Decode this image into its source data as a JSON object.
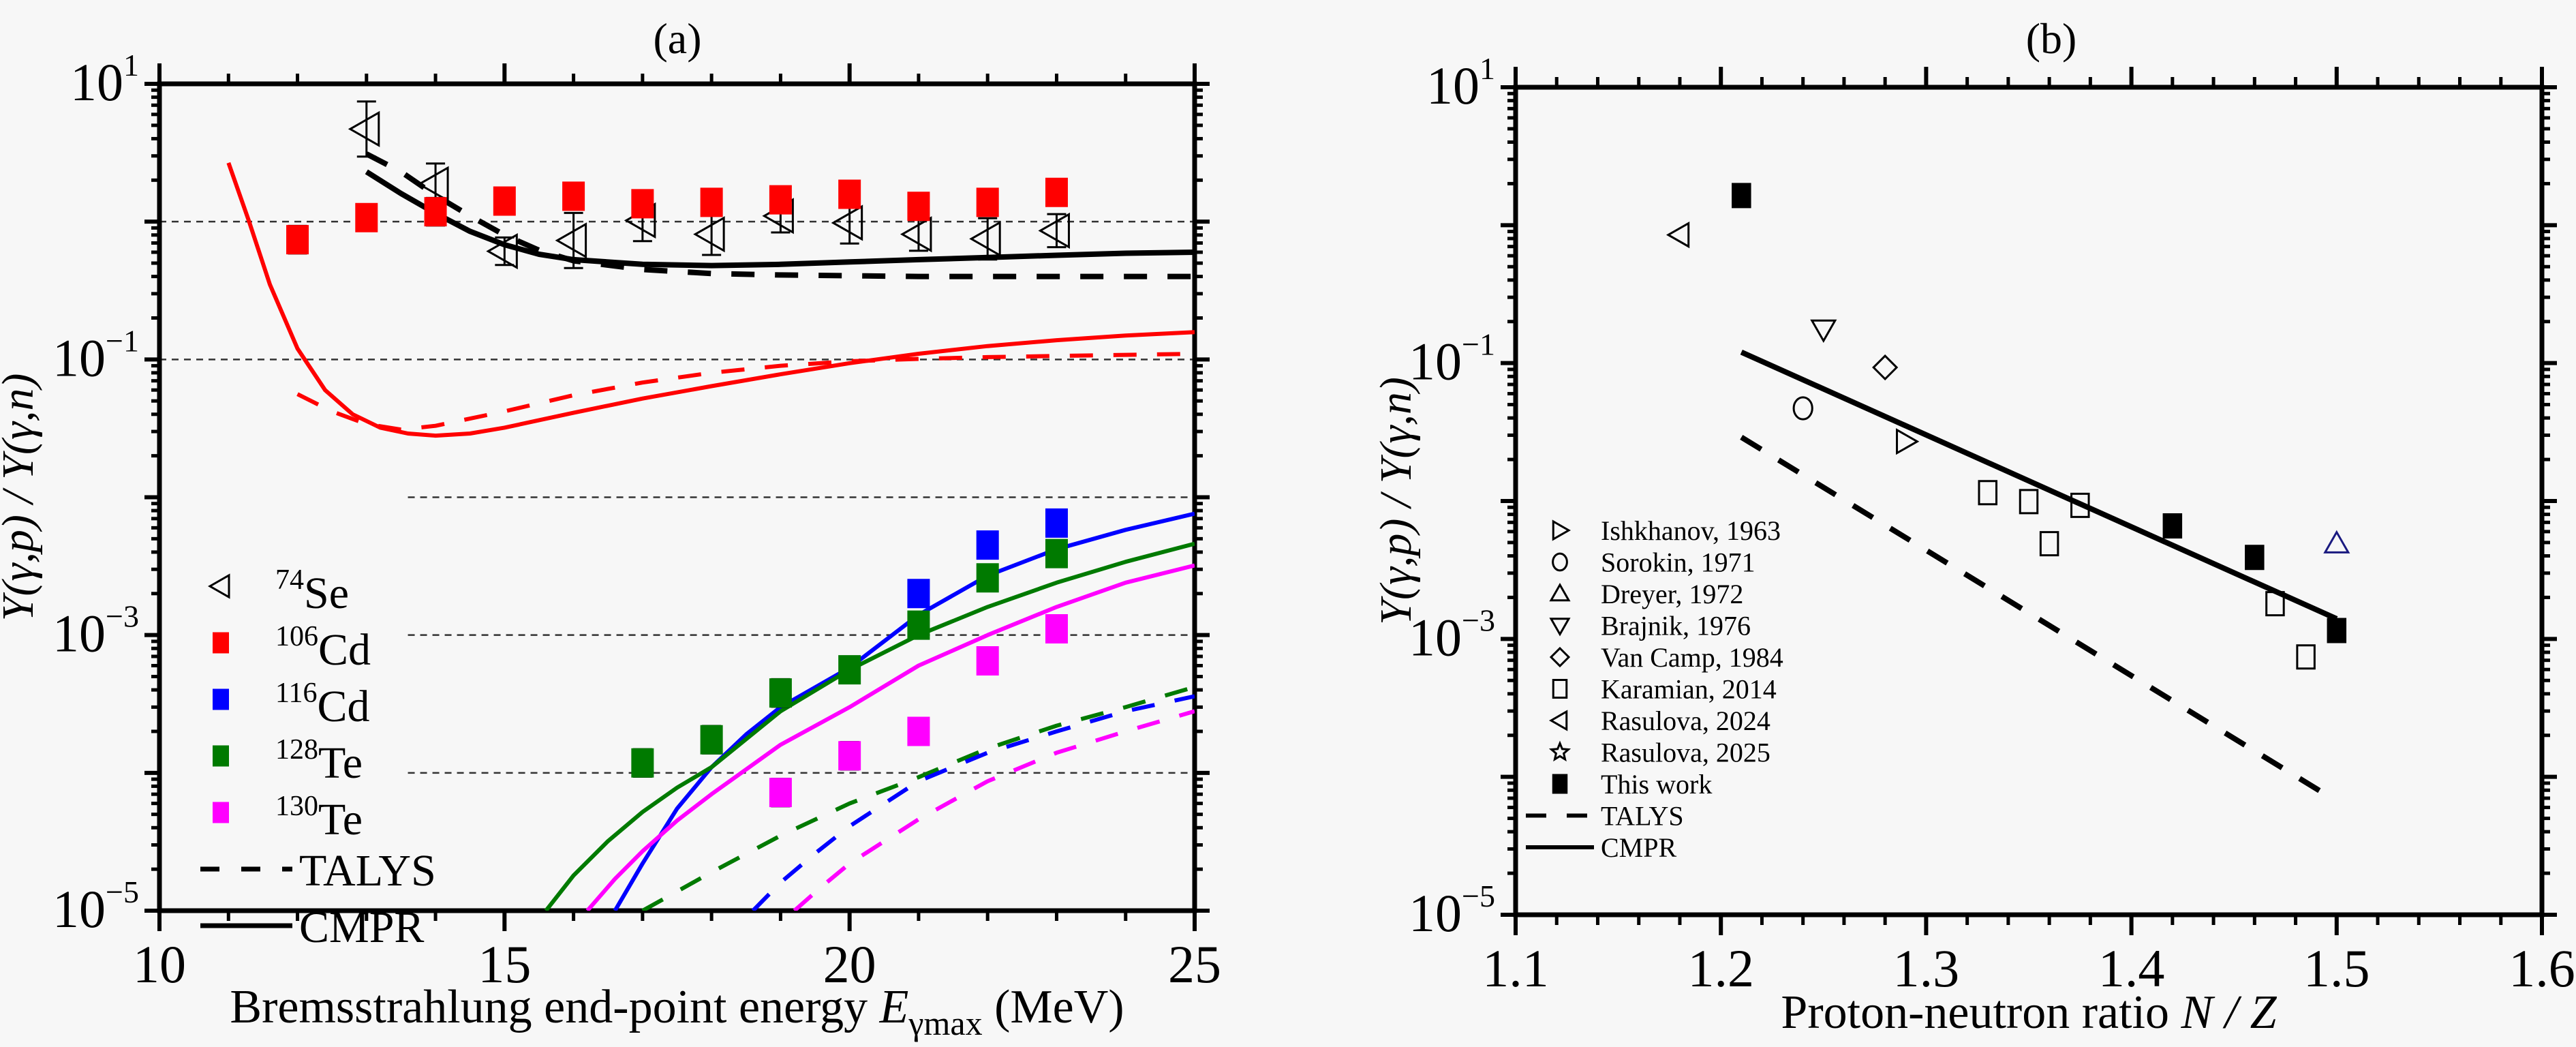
{
  "chart_data": [
    {
      "panel": "(a)",
      "type": "scatter",
      "title": "(a)",
      "xlabel": "Bremsstrahlung end-point energy E_γmax (MeV)",
      "xlabel_parts": {
        "pre": "Bremsstrahlung end-point energy ",
        "var": "E",
        "sub": "γmax",
        "post": " (MeV)"
      },
      "ylabel": "Y(γ,p) / Y(γ,n)",
      "xlim": [
        10,
        25
      ],
      "ylim": [
        1e-05,
        10
      ],
      "yscale": "log",
      "xticks": [
        10,
        15,
        20,
        25
      ],
      "xtick_labels": [
        "10",
        "15",
        "20",
        "25"
      ],
      "yticks": [
        10,
        0.1,
        0.001,
        1e-05
      ],
      "ytick_labels": [
        {
          "base": "10",
          "exp": "1"
        },
        {
          "base": "10",
          "exp": "−1"
        },
        {
          "base": "10",
          "exp": "−3"
        },
        {
          "base": "10",
          "exp": "−5"
        }
      ],
      "reference_lines": [
        {
          "y": 1,
          "from_x": 10
        },
        {
          "y": 0.1,
          "from_x": 10
        },
        {
          "y": 0.01,
          "from_x": 13.6
        },
        {
          "y": 0.001,
          "from_x": 13.6
        },
        {
          "y": 0.0001,
          "from_x": 13.6
        }
      ],
      "legend": {
        "placement": "lower-left",
        "entries": [
          {
            "label_sup": "74",
            "label": "Se",
            "marker": "triangle-left",
            "color": "#000000",
            "filled": false
          },
          {
            "label_sup": "106",
            "label": "Cd",
            "marker": "square",
            "color": "#ff0000",
            "filled": true
          },
          {
            "label_sup": "116",
            "label": "Cd",
            "marker": "square",
            "color": "#0000ff",
            "filled": true
          },
          {
            "label_sup": "128",
            "label": "Te",
            "marker": "square",
            "color": "#007a00",
            "filled": true
          },
          {
            "label_sup": "130",
            "label": "Te",
            "marker": "square",
            "color": "#ff00ff",
            "filled": true
          },
          {
            "label": "TALYS",
            "line": "dashed",
            "color": "#000000"
          },
          {
            "label": "CMPR",
            "line": "solid",
            "color": "#000000"
          }
        ]
      },
      "series": [
        {
          "name": "74Se",
          "marker": "triangle-left",
          "color": "#000000",
          "filled": false,
          "x": [
            13,
            14,
            15,
            16,
            17,
            18,
            19,
            20,
            21,
            22,
            23
          ],
          "y": [
            4.7,
            1.87,
            0.61,
            0.73,
            1.02,
            0.81,
            1.1,
            0.98,
            0.81,
            0.75,
            0.86
          ],
          "err": [
            0.2,
            0.15,
            0.1,
            0.2,
            0.15,
            0.15,
            0.12,
            0.15,
            0.12,
            0.15,
            0.12
          ]
        },
        {
          "name": "106Cd",
          "marker": "square",
          "color": "#ff0000",
          "filled": true,
          "x": [
            12,
            13,
            14,
            15,
            16,
            17,
            18,
            19,
            20,
            21,
            22,
            23
          ],
          "y": [
            0.74,
            1.07,
            1.18,
            1.41,
            1.53,
            1.35,
            1.38,
            1.44,
            1.58,
            1.29,
            1.38,
            1.63
          ],
          "err": [
            0.1,
            0.08,
            0.1,
            0.08,
            0.08,
            0.08,
            0.08,
            0.08,
            0.08,
            0.08,
            0.08,
            0.08
          ]
        },
        {
          "name": "116Cd",
          "marker": "square",
          "color": "#0000ff",
          "filled": true,
          "x": [
            21,
            22,
            23
          ],
          "y": [
            0.002,
            0.0045,
            0.0065
          ],
          "err": [
            0.08,
            0.06,
            0.06
          ]
        },
        {
          "name": "128Te",
          "marker": "square",
          "color": "#007a00",
          "filled": true,
          "x": [
            17,
            18,
            19,
            20,
            21,
            22,
            23
          ],
          "y": [
            0.000118,
            0.000174,
            0.00038,
            0.00056,
            0.00118,
            0.0026,
            0.0039
          ],
          "err": [
            0.1,
            0.1,
            0.1,
            0.06,
            0.06,
            0.06,
            0.06
          ]
        },
        {
          "name": "130Te",
          "marker": "square",
          "color": "#ff00ff",
          "filled": true,
          "x": [
            19,
            20,
            21,
            22,
            23
          ],
          "y": [
            7.2e-05,
            0.000133,
            0.0002,
            0.00065,
            0.00111
          ],
          "err": [
            0.1,
            0.1,
            0.06,
            0.06,
            0.06
          ]
        }
      ],
      "curves": [
        {
          "name": "74Se CMPR",
          "style": "solid",
          "color": "#000000",
          "x": [
            13.0,
            13.5,
            14,
            14.5,
            15,
            15.5,
            16,
            17,
            18,
            19,
            20,
            21,
            22,
            23,
            24,
            25
          ],
          "y": [
            2.3,
            1.6,
            1.15,
            0.85,
            0.68,
            0.58,
            0.53,
            0.49,
            0.48,
            0.49,
            0.51,
            0.53,
            0.55,
            0.57,
            0.59,
            0.6
          ]
        },
        {
          "name": "74Se TALYS",
          "style": "dashed",
          "color": "#000000",
          "x": [
            13.0,
            13.5,
            14,
            14.5,
            15,
            15.5,
            16,
            17,
            18,
            19,
            20,
            21,
            22,
            23,
            24,
            25
          ],
          "y": [
            3.1,
            2.3,
            1.55,
            1.1,
            0.8,
            0.62,
            0.52,
            0.45,
            0.42,
            0.41,
            0.405,
            0.4,
            0.4,
            0.4,
            0.4,
            0.4
          ]
        },
        {
          "name": "106Cd CMPR",
          "style": "solid",
          "color": "#ff0000",
          "x": [
            11.0,
            11.3,
            11.6,
            12.0,
            12.4,
            12.8,
            13.2,
            13.6,
            14.0,
            14.5,
            15,
            16,
            17,
            18,
            19,
            20,
            21,
            22,
            23,
            24,
            25
          ],
          "y": [
            2.67,
            1.0,
            0.35,
            0.12,
            0.06,
            0.04,
            0.032,
            0.029,
            0.028,
            0.029,
            0.032,
            0.041,
            0.052,
            0.064,
            0.078,
            0.094,
            0.11,
            0.125,
            0.138,
            0.149,
            0.158
          ]
        },
        {
          "name": "106Cd TALYS",
          "style": "dashed",
          "color": "#ff0000",
          "x": [
            12.0,
            12.5,
            13.0,
            13.5,
            14,
            15,
            16,
            17,
            18,
            19,
            20,
            21,
            22,
            23,
            24,
            25
          ],
          "y": [
            0.056,
            0.042,
            0.034,
            0.031,
            0.033,
            0.042,
            0.055,
            0.068,
            0.08,
            0.09,
            0.097,
            0.101,
            0.104,
            0.106,
            0.108,
            0.11
          ]
        },
        {
          "name": "116Cd CMPR",
          "style": "solid",
          "color": "#0000ff",
          "x": [
            16.6,
            17,
            17.5,
            18,
            18.5,
            19,
            20,
            21,
            22,
            23,
            24,
            25
          ],
          "y": [
            1e-05,
            2.2e-05,
            5.5e-05,
            0.00011,
            0.00019,
            0.0003,
            0.00058,
            0.0014,
            0.0027,
            0.0042,
            0.0058,
            0.0076
          ]
        },
        {
          "name": "128Te CMPR",
          "style": "solid",
          "color": "#007a00",
          "x": [
            15.6,
            16,
            16.5,
            17,
            17.5,
            18,
            19,
            20,
            21,
            22,
            23,
            24,
            25
          ],
          "y": [
            1e-05,
            1.8e-05,
            3.2e-05,
            5.2e-05,
            7.8e-05,
            0.00011,
            0.00028,
            0.00056,
            0.001,
            0.0016,
            0.0024,
            0.0034,
            0.0046
          ]
        },
        {
          "name": "130Te CMPR",
          "style": "solid",
          "color": "#ff00ff",
          "x": [
            16.2,
            16.6,
            17,
            17.5,
            18,
            19,
            20,
            21,
            22,
            23,
            24,
            25
          ],
          "y": [
            1e-05,
            1.7e-05,
            2.7e-05,
            4.5e-05,
            7e-05,
            0.00016,
            0.0003,
            0.0006,
            0.001,
            0.0016,
            0.0024,
            0.0032
          ]
        },
        {
          "name": "128Te TALYS",
          "style": "dashed",
          "color": "#007a00",
          "x": [
            17.0,
            18,
            19,
            20,
            21,
            22,
            23,
            24,
            25
          ],
          "y": [
            1e-05,
            1.9e-05,
            3.5e-05,
            6e-05,
            9.3e-05,
            0.00015,
            0.00022,
            0.0003,
            0.00042
          ]
        },
        {
          "name": "116Cd TALYS",
          "style": "dashed",
          "color": "#0000ff",
          "x": [
            18.6,
            19,
            19.5,
            20,
            21,
            22,
            23,
            24,
            25
          ],
          "y": [
            1e-05,
            1.6e-05,
            2.6e-05,
            4.1e-05,
            8.7e-05,
            0.00014,
            0.0002,
            0.00028,
            0.00036
          ]
        },
        {
          "name": "130Te TALYS",
          "style": "dashed",
          "color": "#ff00ff",
          "x": [
            19.2,
            19.6,
            20,
            21,
            22,
            23,
            24,
            25
          ],
          "y": [
            1e-05,
            1.5e-05,
            2.2e-05,
            4.6e-05,
            8.7e-05,
            0.00014,
            0.0002,
            0.00028
          ]
        }
      ]
    },
    {
      "panel": "(b)",
      "type": "scatter",
      "title": "(b)",
      "xlabel": "Proton-neutron ratio N / Z",
      "xlabel_parts": {
        "pre": "Proton-neutron ratio ",
        "var": "N / Z"
      },
      "ylabel": "Y(γ,p) / Y(γ,n)",
      "xlim": [
        1.1,
        1.6
      ],
      "ylim": [
        1e-05,
        10
      ],
      "yscale": "log",
      "xticks": [
        1.1,
        1.2,
        1.3,
        1.4,
        1.5,
        1.6
      ],
      "xtick_labels": [
        "1.1",
        "1.2",
        "1.3",
        "1.4",
        "1.5",
        "1.6"
      ],
      "yticks": [
        10,
        0.1,
        0.001,
        1e-05
      ],
      "ytick_labels": [
        {
          "base": "10",
          "exp": "1"
        },
        {
          "base": "10",
          "exp": "−1"
        },
        {
          "base": "10",
          "exp": "−3"
        },
        {
          "base": "10",
          "exp": "−5"
        }
      ],
      "legend": {
        "placement": "lower-left",
        "entries": [
          {
            "label": "Ishkhanov, 1963",
            "marker": "triangle-right"
          },
          {
            "label": "Sorokin, 1971",
            "marker": "circle"
          },
          {
            "label": "Dreyer, 1972",
            "marker": "triangle-up"
          },
          {
            "label": "Brajnik, 1976",
            "marker": "triangle-down"
          },
          {
            "label": "Van Camp, 1984",
            "marker": "diamond"
          },
          {
            "label": "Karamian, 2014",
            "marker": "square-open"
          },
          {
            "label": "Rasulova, 2024",
            "marker": "triangle-left"
          },
          {
            "label": "Rasulova, 2025",
            "marker": "star"
          },
          {
            "label": "This work",
            "marker": "square-filled"
          },
          {
            "label": "TALYS",
            "line": "dashed"
          },
          {
            "label": "CMPR",
            "line": "solid"
          }
        ]
      },
      "series": [
        {
          "name": "Ishkhanov, 1963",
          "marker": "triangle-right",
          "color": "#000000",
          "x": [
            1.29
          ],
          "y": [
            0.027
          ]
        },
        {
          "name": "Sorokin, 1971",
          "marker": "circle",
          "color": "#000000",
          "x": [
            1.24
          ],
          "y": [
            0.047
          ]
        },
        {
          "name": "Dreyer, 1972",
          "marker": "triangle-up",
          "color": "#1a1a80",
          "x": [
            1.5
          ],
          "y": [
            0.0049
          ]
        },
        {
          "name": "Brajnik, 1976",
          "marker": "triangle-down",
          "color": "#000000",
          "x": [
            1.25
          ],
          "y": [
            0.176
          ]
        },
        {
          "name": "Van Camp, 1984",
          "marker": "diamond",
          "color": "#000000",
          "x": [
            1.28
          ],
          "y": [
            0.093
          ]
        },
        {
          "name": "Karamian, 2014",
          "marker": "square-open",
          "color": "#000000",
          "x": [
            1.33,
            1.35,
            1.36,
            1.375,
            1.47,
            1.485
          ],
          "y": [
            0.0115,
            0.0099,
            0.0049,
            0.0093,
            0.0018,
            0.00074
          ]
        },
        {
          "name": "Rasulova, 2024",
          "marker": "triangle-left",
          "color": "#000000",
          "x": [
            1.18
          ],
          "y": [
            0.85
          ]
        },
        {
          "name": "This work",
          "marker": "square-filled",
          "color": "#000000",
          "x": [
            1.21,
            1.42,
            1.46,
            1.5
          ],
          "y": [
            1.64,
            0.0066,
            0.0039,
            0.00115
          ]
        }
      ],
      "curves": [
        {
          "name": "CMPR",
          "style": "solid",
          "color": "#000000",
          "x": [
            1.21,
            1.5
          ],
          "y": [
            0.12,
            0.0014
          ]
        },
        {
          "name": "TALYS",
          "style": "dashed",
          "color": "#000000",
          "x": [
            1.21,
            1.495
          ],
          "y": [
            0.029,
            7.4e-05
          ]
        }
      ]
    }
  ]
}
